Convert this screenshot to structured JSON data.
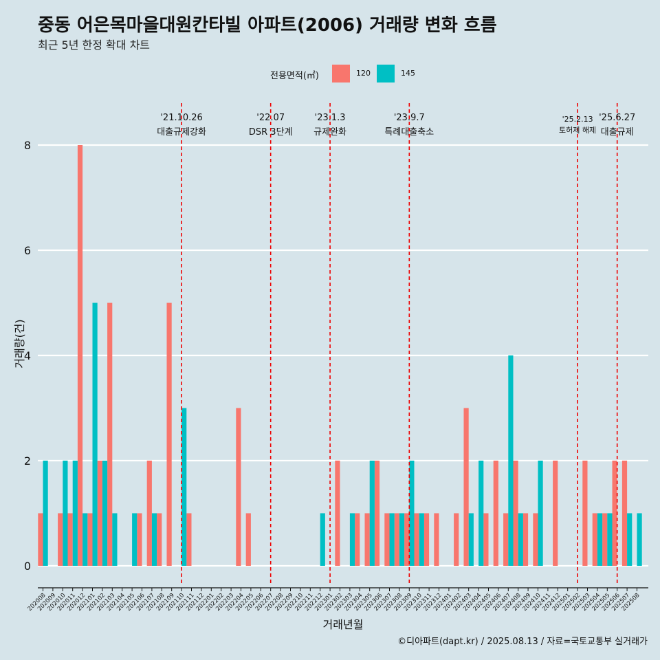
{
  "title": "중동 어은목마을대원칸타빌 아파트(2006) 거래량 변화 흐름",
  "subtitle": "최근 5년 한정 확대 차트",
  "caption": "©디아파트(dapt.kr) / 2025.08.13 / 자료=국토교통부 실거래가",
  "legend": {
    "title": "전용면적(㎡)",
    "items": [
      {
        "label": "120",
        "color": "#f8766d"
      },
      {
        "label": "145",
        "color": "#00bfc4"
      }
    ]
  },
  "chart_data": {
    "type": "bar",
    "xlabel": "거래년월",
    "ylabel": "거래량(건)",
    "ylim": [
      0,
      8.6
    ],
    "yticks": [
      0,
      2,
      4,
      6,
      8
    ],
    "categories": [
      "202008",
      "202009",
      "202010",
      "202011",
      "202012",
      "202101",
      "202102",
      "202103",
      "202104",
      "202105",
      "202106",
      "202107",
      "202108",
      "202109",
      "202110",
      "202111",
      "202112",
      "202201",
      "202202",
      "202203",
      "202204",
      "202205",
      "202206",
      "202207",
      "202208",
      "202209",
      "202210",
      "202211",
      "202212",
      "202301",
      "202302",
      "202303",
      "202304",
      "202305",
      "202306",
      "202307",
      "202308",
      "202309",
      "202310",
      "202311",
      "202312",
      "202401",
      "202402",
      "202403",
      "202404",
      "202405",
      "202406",
      "202407",
      "202408",
      "202409",
      "202410",
      "202411",
      "202412",
      "202501",
      "202502",
      "202503",
      "202504",
      "202505",
      "202506",
      "202507",
      "202508"
    ],
    "series": [
      {
        "name": "120",
        "color": "#f8766d",
        "values": [
          1,
          0,
          1,
          1,
          8,
          1,
          2,
          5,
          0,
          0,
          1,
          2,
          1,
          5,
          0,
          1,
          0,
          0,
          0,
          0,
          3,
          1,
          0,
          0,
          0,
          0,
          0,
          0,
          0,
          0,
          2,
          0,
          1,
          1,
          2,
          1,
          1,
          1,
          1,
          1,
          1,
          0,
          1,
          3,
          0,
          1,
          2,
          1,
          2,
          1,
          1,
          0,
          2,
          0,
          0,
          2,
          1,
          1,
          2,
          2,
          0
        ]
      },
      {
        "name": "145",
        "color": "#00bfc4",
        "values": [
          2,
          0,
          2,
          2,
          1,
          5,
          2,
          1,
          0,
          1,
          0,
          1,
          0,
          0,
          3,
          0,
          0,
          0,
          0,
          0,
          0,
          0,
          0,
          0,
          0,
          0,
          0,
          0,
          1,
          0,
          0,
          1,
          0,
          2,
          0,
          1,
          1,
          2,
          1,
          0,
          0,
          0,
          0,
          1,
          2,
          0,
          0,
          4,
          1,
          0,
          2,
          0,
          0,
          0,
          0,
          0,
          1,
          1,
          0,
          1,
          1
        ]
      }
    ],
    "annotations": [
      {
        "category": "202110",
        "date": "'21.10.26",
        "label": "대출규제강화"
      },
      {
        "category": "202207",
        "date": "'22.07",
        "label": "DSR 3단계"
      },
      {
        "category": "202301",
        "date": "'23.1.3",
        "label": "규제완화"
      },
      {
        "category": "202309",
        "date": "'23.9.7",
        "label": "특례대출축소"
      },
      {
        "category": "202502",
        "date": "'25.2.13",
        "label": "토허제 해제"
      },
      {
        "category": "202506",
        "date": "'25.6.27",
        "label": "대출규제"
      }
    ]
  }
}
